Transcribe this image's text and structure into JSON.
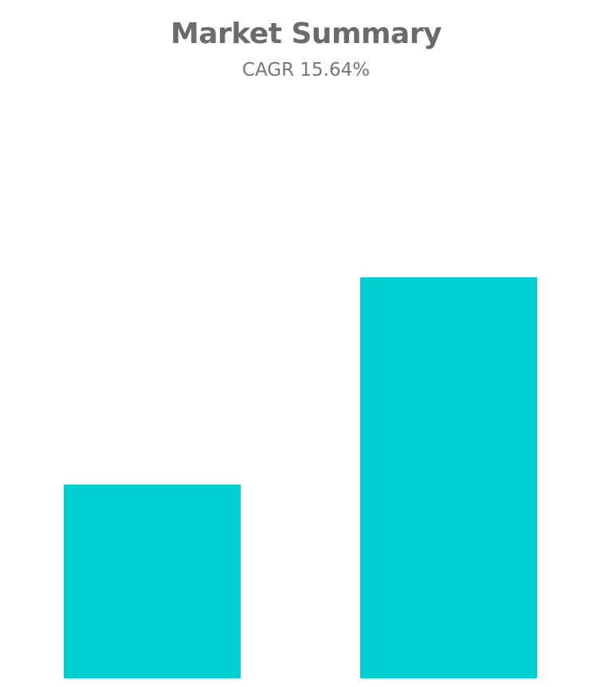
{
  "chart_data": {
    "type": "bar",
    "title": "Market Summary",
    "subtitle": "CAGR 15.64%",
    "categories": [
      "",
      ""
    ],
    "values": [
      243,
      503
    ],
    "ylim": [
      0,
      503
    ],
    "grid": false,
    "legend": "none",
    "bar_color": "#00CFD1"
  }
}
